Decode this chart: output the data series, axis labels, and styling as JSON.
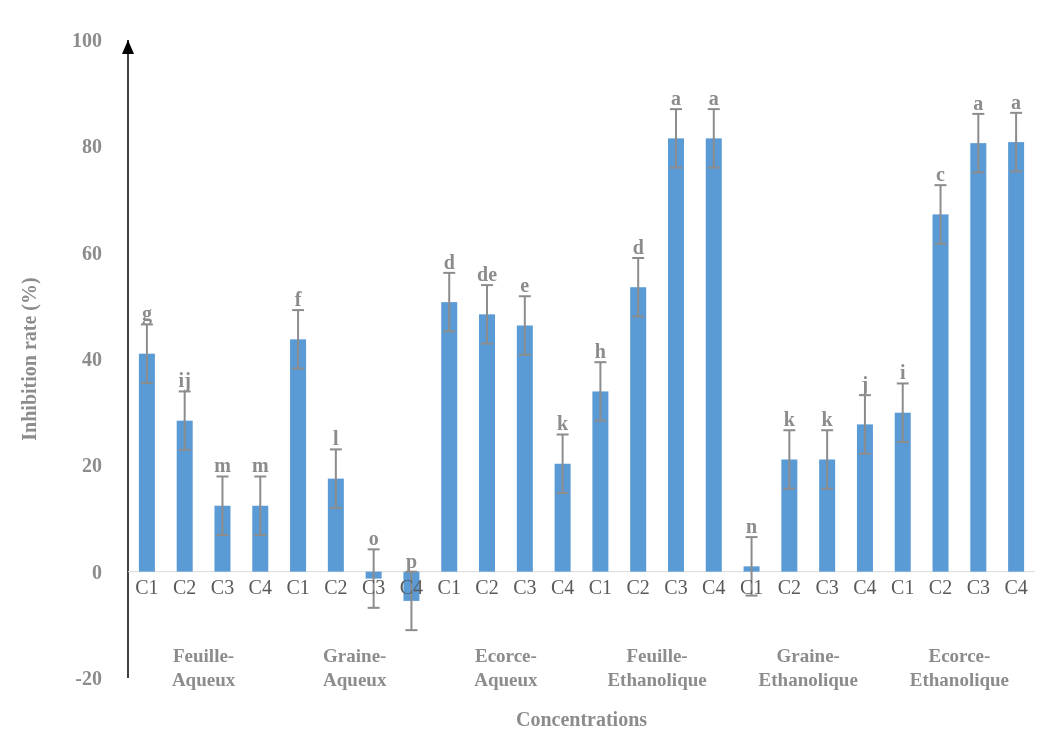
{
  "chart_data": {
    "type": "bar",
    "ylabel": "Inhibition rate (%)",
    "xlabel": "Concentrations",
    "categories": [
      "C1",
      "C2",
      "C3",
      "C4",
      "C1",
      "C2",
      "C3",
      "C4",
      "C1",
      "C2",
      "C3",
      "C4",
      "C1",
      "C2",
      "C3",
      "C4",
      "C1",
      "C2",
      "C3",
      "C4",
      "C1",
      "C2",
      "C3",
      "C4"
    ],
    "values": [
      41,
      28.4,
      12.4,
      12.4,
      43.7,
      17.5,
      -1.3,
      -5.5,
      50.7,
      48.4,
      46.3,
      20.3,
      33.9,
      53.5,
      81.5,
      81.5,
      1,
      21.1,
      21.1,
      27.7,
      29.9,
      67.2,
      80.6,
      80.8
    ],
    "errors": [
      5.5,
      5.5,
      5.5,
      5.5,
      5.5,
      5.5,
      5.5,
      5.5,
      5.5,
      5.5,
      5.5,
      5.5,
      5.5,
      5.5,
      5.5,
      5.5,
      5.5,
      5.5,
      5.5,
      5.5,
      5.5,
      5.5,
      5.5,
      5.5
    ],
    "value_labels": [
      "g",
      "ij",
      "m",
      "m",
      "f",
      "l",
      "o",
      "p",
      "d",
      "de",
      "e",
      "k",
      "h",
      "d",
      "a",
      "a",
      "n",
      "k",
      "k",
      "j",
      "i",
      "c",
      "a",
      "a"
    ],
    "color": "#5b9bd5",
    "ylim": [
      -20,
      100
    ],
    "yticks": [
      -20,
      0,
      20,
      40,
      60,
      80,
      100
    ],
    "annotations": [
      "Feuille-Aqueux",
      "Graine-Aqueux",
      "Ecorce-Aqueux",
      "Feuille-Ethanolique",
      "Graine-Ethanolique",
      "Ecorce-Ethanolique"
    ]
  }
}
